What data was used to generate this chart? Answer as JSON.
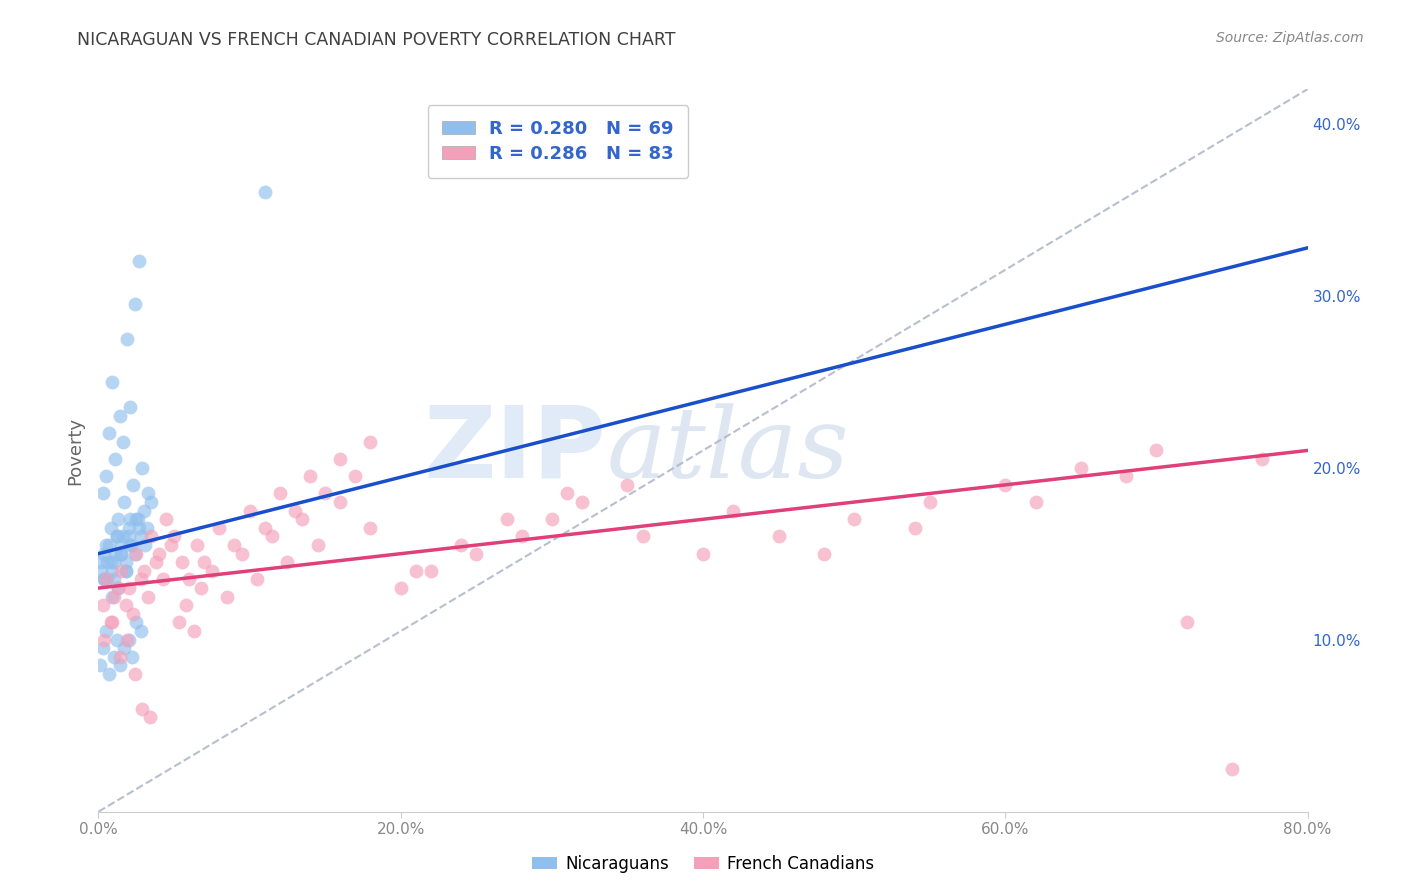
{
  "title": "NICARAGUAN VS FRENCH CANADIAN POVERTY CORRELATION CHART",
  "source": "Source: ZipAtlas.com",
  "ylabel": "Poverty",
  "xlabel_ticks": [
    "0.0%",
    "20.0%",
    "40.0%",
    "60.0%",
    "80.0%"
  ],
  "xlabel_vals": [
    0,
    20,
    40,
    60,
    80
  ],
  "ytick_labels": [
    "10.0%",
    "20.0%",
    "30.0%",
    "40.0%"
  ],
  "ytick_vals": [
    10,
    20,
    30,
    40
  ],
  "watermark_zip": "ZIP",
  "watermark_atlas": "atlas",
  "legend_label_blue": "Nicaraguans",
  "legend_label_pink": "French Canadians",
  "blue_color": "#90bfed",
  "pink_color": "#f4a0ba",
  "blue_line_color": "#1a4fcc",
  "pink_line_color": "#e0407a",
  "dashed_line_color": "#b0b8c8",
  "background_color": "#ffffff",
  "grid_color": "#cccccc",
  "title_color": "#404040",
  "source_color": "#888888",
  "legend_text_color": "#3366cc",
  "tick_color": "#888888",
  "blue_scatter_x": [
    0.5,
    0.8,
    1.0,
    1.2,
    1.5,
    1.8,
    2.0,
    2.2,
    2.5,
    2.8,
    3.0,
    3.2,
    3.5,
    0.3,
    0.5,
    0.7,
    0.9,
    1.1,
    1.4,
    1.6,
    1.9,
    2.1,
    2.4,
    2.7,
    3.1,
    0.2,
    0.4,
    0.6,
    0.8,
    1.0,
    1.3,
    1.5,
    1.7,
    2.0,
    2.3,
    2.6,
    2.9,
    3.3,
    0.1,
    0.3,
    0.5,
    0.7,
    1.0,
    1.2,
    1.4,
    1.7,
    2.0,
    2.2,
    2.5,
    2.8,
    0.4,
    0.6,
    0.9,
    1.1,
    1.3,
    1.6,
    1.8,
    2.1,
    2.4,
    2.7,
    0.2,
    0.4,
    0.7,
    0.9,
    1.2,
    1.5,
    1.8,
    2.1,
    11.0
  ],
  "blue_scatter_y": [
    15.5,
    14.5,
    13.5,
    16.0,
    15.0,
    14.0,
    16.5,
    15.5,
    17.0,
    16.0,
    17.5,
    16.5,
    18.0,
    18.5,
    19.5,
    22.0,
    25.0,
    20.5,
    23.0,
    21.5,
    27.5,
    23.5,
    29.5,
    32.0,
    15.5,
    14.0,
    15.0,
    13.5,
    16.5,
    14.5,
    17.0,
    15.5,
    18.0,
    16.0,
    19.0,
    17.0,
    20.0,
    18.5,
    8.5,
    9.5,
    10.5,
    8.0,
    9.0,
    10.0,
    8.5,
    9.5,
    10.0,
    9.0,
    11.0,
    10.5,
    13.5,
    14.5,
    12.5,
    15.0,
    13.0,
    16.0,
    14.0,
    17.0,
    15.0,
    16.5,
    14.5,
    13.5,
    15.5,
    14.0,
    16.0,
    15.0,
    14.5,
    15.5,
    36.0
  ],
  "pink_scatter_x": [
    0.5,
    1.0,
    1.5,
    2.0,
    2.5,
    3.0,
    3.5,
    4.0,
    4.5,
    5.0,
    5.5,
    6.0,
    6.5,
    7.0,
    8.0,
    9.0,
    10.0,
    11.0,
    12.0,
    13.0,
    14.0,
    15.0,
    16.0,
    17.0,
    18.0,
    20.0,
    22.0,
    25.0,
    28.0,
    30.0,
    32.0,
    35.0,
    40.0,
    45.0,
    50.0,
    55.0,
    60.0,
    65.0,
    70.0,
    75.0,
    0.3,
    0.8,
    1.3,
    1.8,
    2.3,
    2.8,
    3.3,
    3.8,
    4.3,
    4.8,
    5.3,
    5.8,
    6.3,
    6.8,
    7.5,
    8.5,
    9.5,
    10.5,
    11.5,
    12.5,
    13.5,
    14.5,
    16.0,
    18.0,
    21.0,
    24.0,
    27.0,
    31.0,
    36.0,
    42.0,
    48.0,
    54.0,
    62.0,
    68.0,
    72.0,
    77.0,
    0.4,
    0.9,
    1.4,
    1.9,
    2.4,
    2.9,
    3.4
  ],
  "pink_scatter_y": [
    13.5,
    12.5,
    14.0,
    13.0,
    15.0,
    14.0,
    16.0,
    15.0,
    17.0,
    16.0,
    14.5,
    13.5,
    15.5,
    14.5,
    16.5,
    15.5,
    17.5,
    16.5,
    18.5,
    17.5,
    19.5,
    18.5,
    20.5,
    19.5,
    21.5,
    13.0,
    14.0,
    15.0,
    16.0,
    17.0,
    18.0,
    19.0,
    15.0,
    16.0,
    17.0,
    18.0,
    19.0,
    20.0,
    21.0,
    2.5,
    12.0,
    11.0,
    13.0,
    12.0,
    11.5,
    13.5,
    12.5,
    14.5,
    13.5,
    15.5,
    11.0,
    12.0,
    10.5,
    13.0,
    14.0,
    12.5,
    15.0,
    13.5,
    16.0,
    14.5,
    17.0,
    15.5,
    18.0,
    16.5,
    14.0,
    15.5,
    17.0,
    18.5,
    16.0,
    17.5,
    15.0,
    16.5,
    18.0,
    19.5,
    11.0,
    20.5,
    10.0,
    11.0,
    9.0,
    10.0,
    8.0,
    6.0,
    5.5
  ]
}
